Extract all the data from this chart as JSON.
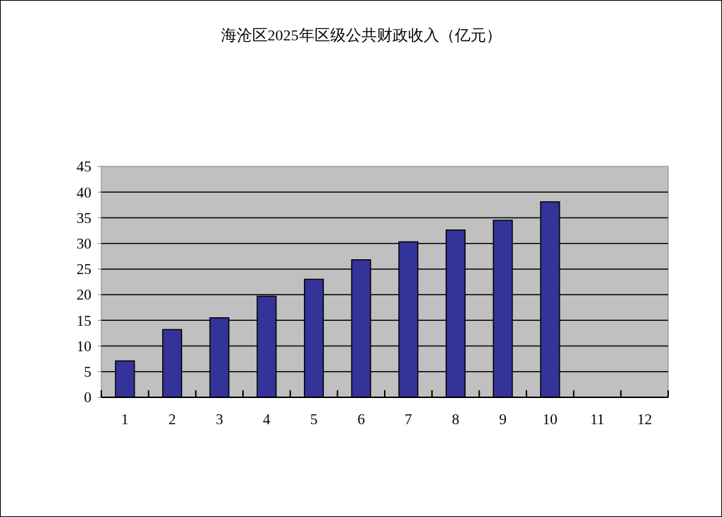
{
  "chart_data": {
    "type": "bar",
    "title": "海沧区2025年区级公共财政收入（亿元）",
    "categories": [
      "1",
      "2",
      "3",
      "4",
      "5",
      "6",
      "7",
      "8",
      "9",
      "10",
      "11",
      "12"
    ],
    "values": [
      7.1,
      13.2,
      15.5,
      19.7,
      23.0,
      26.8,
      30.3,
      32.6,
      34.5,
      38.1,
      null,
      null
    ],
    "color": "#333399",
    "ylim": [
      0,
      45
    ],
    "yticks": [
      0,
      5,
      10,
      15,
      20,
      25,
      30,
      35,
      40,
      45
    ],
    "grid": "y"
  }
}
